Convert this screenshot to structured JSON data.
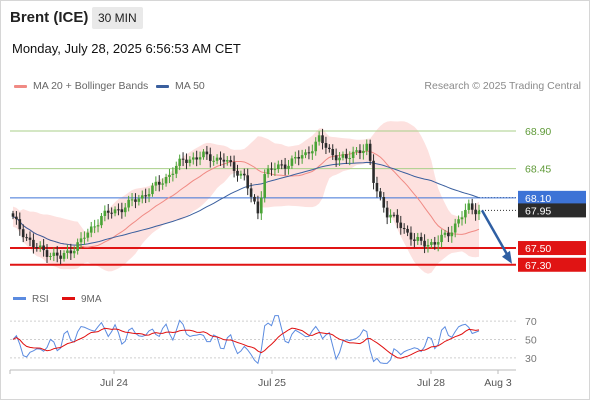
{
  "header": {
    "instrument": "Brent (ICE)",
    "interval": "30 MIN",
    "datetime": "Monday, July 28, 2025 6:56:53 AM CET"
  },
  "legend": {
    "items": [
      {
        "label": "MA 20 + Bollinger Bands",
        "color": "#f08a84"
      },
      {
        "label": "MA 50",
        "color": "#3a5f9e"
      }
    ],
    "credit": "Research © 2025 Trading Central"
  },
  "rsi_legend": {
    "items": [
      {
        "label": "RSI",
        "color": "#5b8be0"
      },
      {
        "label": "9MA",
        "color": "#e01010"
      }
    ]
  },
  "chart_data": {
    "type": "candlestick",
    "price_range": [
      67.07,
      69.27
    ],
    "levels": [
      {
        "value": 68.9,
        "label": "68.90",
        "kind": "resistance",
        "color": "#a9cf8a"
      },
      {
        "value": 68.45,
        "label": "68.45",
        "kind": "resistance",
        "color": "#a9cf8a"
      },
      {
        "value": 68.1,
        "label": "68.10",
        "kind": "pivot",
        "color": "#3d73d6"
      },
      {
        "value": 67.5,
        "label": "67.50",
        "kind": "support",
        "color": "#e01414"
      },
      {
        "value": 67.3,
        "label": "67.30",
        "kind": "support",
        "color": "#e01414"
      }
    ],
    "last_price": {
      "value": 67.95,
      "label": "67.95"
    },
    "projection": {
      "from": 67.95,
      "to": 67.3,
      "color": "#2f5fa3"
    },
    "x_ticks": [
      "Jul 24",
      "Jul 25",
      "Jul 28",
      "Aug 3"
    ],
    "rsi": {
      "range": [
        20,
        80
      ],
      "ticks": [
        {
          "value": 70,
          "label": "70"
        },
        {
          "value": 50,
          "label": "50"
        },
        {
          "value": 30,
          "label": "30"
        }
      ]
    }
  }
}
